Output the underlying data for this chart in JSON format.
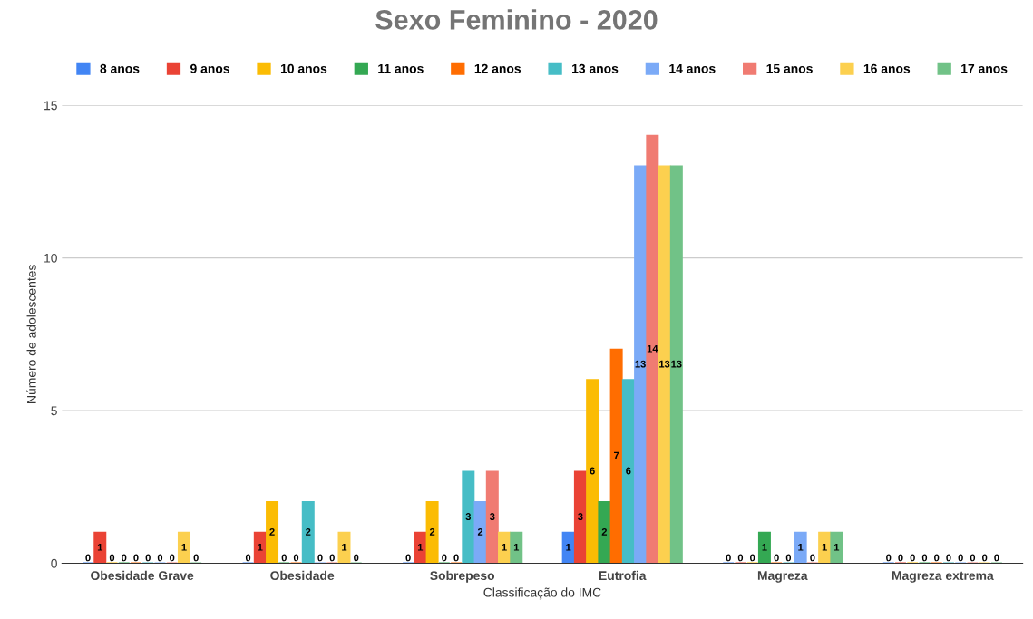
{
  "chart_data": {
    "type": "bar",
    "title": "Sexo Feminino - 2020",
    "xlabel": "Classificação do IMC",
    "ylabel": "Número de adolescentes",
    "categories": [
      "Obesidade Grave",
      "Obesidade",
      "Sobrepeso",
      "Eutrofia",
      "Magreza",
      "Magreza extrema"
    ],
    "series": [
      {
        "name": "8 anos",
        "color": "#4285f4",
        "values": [
          0,
          0,
          0,
          1,
          0,
          0
        ]
      },
      {
        "name": "9 anos",
        "color": "#ea4335",
        "values": [
          1,
          1,
          1,
          3,
          0,
          0
        ]
      },
      {
        "name": "10 anos",
        "color": "#fbbc04",
        "values": [
          0,
          2,
          2,
          6,
          0,
          0
        ]
      },
      {
        "name": "11 anos",
        "color": "#34a853",
        "values": [
          0,
          0,
          0,
          2,
          1,
          0
        ]
      },
      {
        "name": "12 anos",
        "color": "#ff6d01",
        "values": [
          0,
          0,
          0,
          7,
          0,
          0
        ]
      },
      {
        "name": "13 anos",
        "color": "#46bdc6",
        "values": [
          0,
          2,
          3,
          6,
          0,
          0
        ]
      },
      {
        "name": "14 anos",
        "color": "#7baaf7",
        "values": [
          0,
          0,
          2,
          13,
          1,
          0
        ]
      },
      {
        "name": "15 anos",
        "color": "#f07b72",
        "values": [
          0,
          0,
          3,
          14,
          0,
          0
        ]
      },
      {
        "name": "16 anos",
        "color": "#fcd04f",
        "values": [
          1,
          1,
          1,
          13,
          1,
          0
        ]
      },
      {
        "name": "17 anos",
        "color": "#71c287",
        "values": [
          0,
          0,
          1,
          13,
          1,
          0
        ]
      }
    ],
    "ylim": [
      0,
      15
    ],
    "yticks": [
      0,
      5,
      10,
      15
    ],
    "grid": "y",
    "legend": "top",
    "data_labels": true
  }
}
